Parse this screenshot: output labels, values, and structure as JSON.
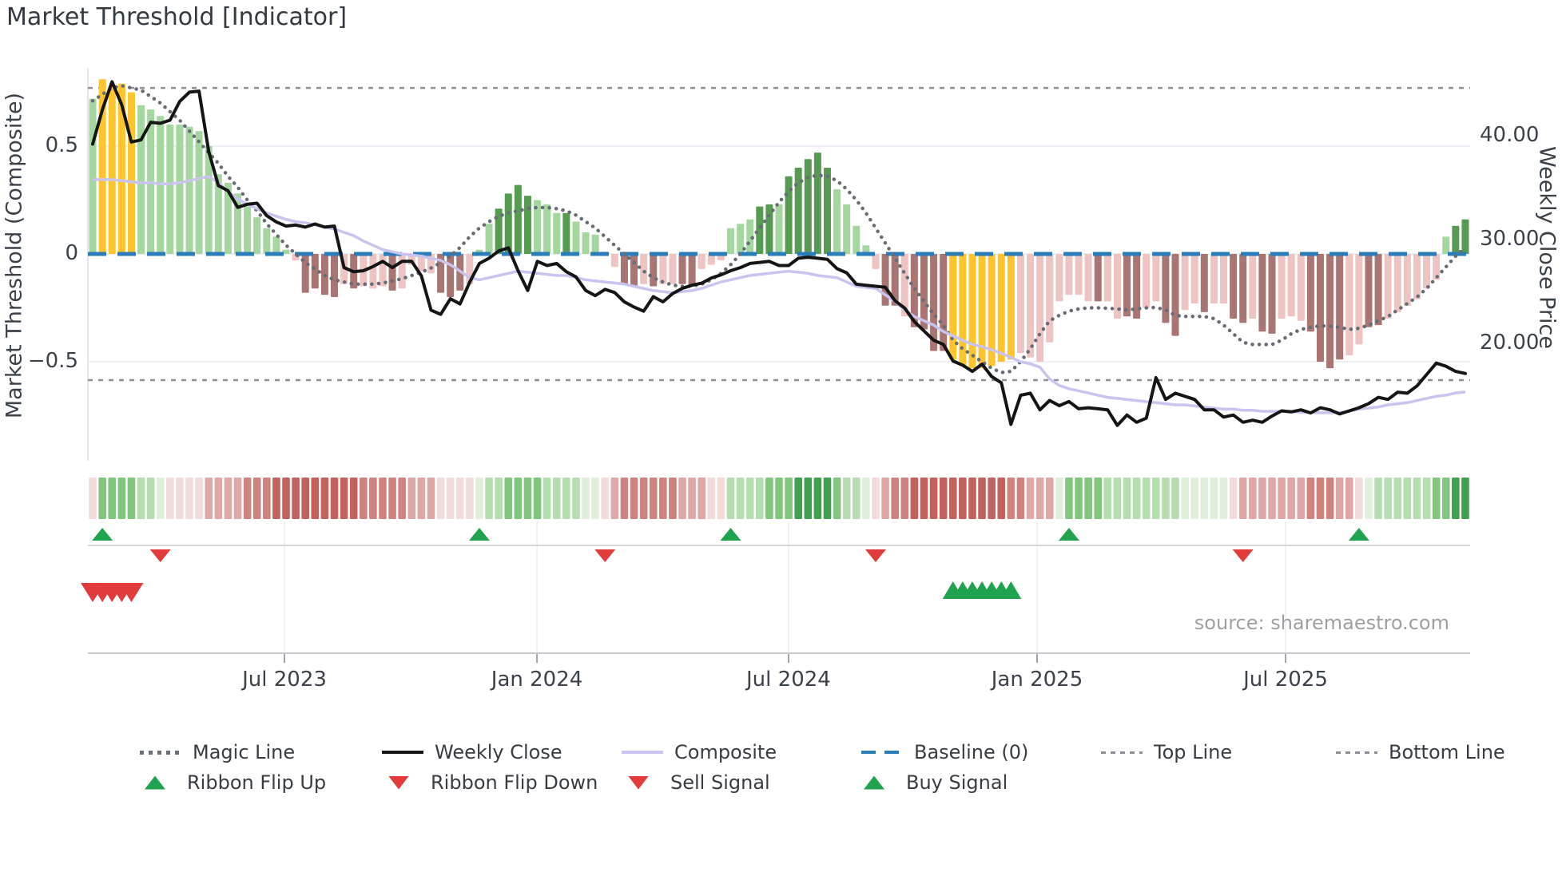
{
  "title": "Market Threshold [Indicator]",
  "source_note": "source: sharemaestro.com",
  "axes": {
    "left": {
      "title": "Market Threshold (Composite)",
      "ticks": [
        {
          "label": "0.5",
          "value": 0.5
        },
        {
          "label": "0",
          "value": 0
        },
        {
          "label": "−0.5",
          "value": -0.5
        }
      ]
    },
    "right": {
      "title": "Weekly Close Price",
      "ticks": [
        {
          "label": "40.00",
          "value": 40
        },
        {
          "label": "30.00",
          "value": 30
        },
        {
          "label": "20.00",
          "value": 20
        }
      ]
    },
    "x": {
      "ticks": [
        {
          "label": "Jul 2023",
          "pos": 0.1422
        },
        {
          "label": "Jan 2024",
          "pos": 0.3249
        },
        {
          "label": "Jul 2024",
          "pos": 0.5069
        },
        {
          "label": "Jan 2025",
          "pos": 0.6867
        },
        {
          "label": "Jul 2025",
          "pos": 0.8665
        }
      ]
    }
  },
  "colors": {
    "bar": {
      "g": "#a6d6a0",
      "G": "#579a51",
      "y": "#fdc42c",
      "p": "#edc4c2",
      "R": "#a97572"
    },
    "ribbon": {
      "R3": "#c2625f",
      "R2": "#cf837f",
      "R1": "#dfa8a6",
      "R0": "#f2dcdb",
      "G0": "#dfefdc",
      "G1": "#b5ddb0",
      "G2": "#82c57f",
      "G3": "#41a04f"
    },
    "weekly_close": "#151515",
    "composite": "#c9c3ee",
    "magic_line": "#686c75",
    "baseline": "#2b7cba",
    "threshold_line": "#8d9298",
    "grid": "#edeff6",
    "signal_up": "#1fa34e",
    "signal_down": "#e13b3b"
  },
  "chart_data": {
    "type": "mixed",
    "subtype": "weekly bar histogram with overlay lines, ribbon heatmap and signal markers",
    "n": 143,
    "period": "weekly, Feb 2023 - Nov 2025",
    "left_ylim": [
      -0.96,
      0.86
    ],
    "right_ylim": [
      8.7,
      46.5
    ],
    "grid": "horizontal only",
    "reference_lines": {
      "baseline": 0,
      "top_line": 0.77,
      "bottom_line": -0.585
    },
    "bars": {
      "name": "Market Threshold composite histogram (yellow = highlighted extreme zones)",
      "values": [
        0.72,
        0.81,
        0.78,
        0.79,
        0.75,
        0.69,
        0.67,
        0.64,
        0.6,
        0.6,
        0.59,
        0.57,
        0.5,
        0.37,
        0.33,
        0.28,
        0.22,
        0.17,
        0.12,
        0.08,
        0.02,
        -0.03,
        -0.18,
        -0.16,
        -0.19,
        -0.2,
        -0.14,
        -0.16,
        -0.15,
        -0.16,
        -0.15,
        -0.17,
        -0.16,
        -0.05,
        -0.08,
        -0.09,
        -0.18,
        -0.2,
        -0.17,
        -0.14,
        0.02,
        0.14,
        0.21,
        0.28,
        0.32,
        0.27,
        0.25,
        0.23,
        0.19,
        0.19,
        0.15,
        0.1,
        0.09,
        0.01,
        -0.06,
        -0.14,
        -0.15,
        -0.14,
        -0.15,
        -0.14,
        -0.14,
        -0.14,
        -0.15,
        -0.07,
        -0.05,
        -0.03,
        0.12,
        0.14,
        0.16,
        0.22,
        0.23,
        0.23,
        0.36,
        0.4,
        0.44,
        0.47,
        0.4,
        0.3,
        0.23,
        0.13,
        0.04,
        -0.07,
        -0.24,
        -0.24,
        -0.29,
        -0.34,
        -0.35,
        -0.45,
        -0.45,
        -0.49,
        -0.52,
        -0.53,
        -0.53,
        -0.52,
        -0.5,
        -0.49,
        -0.46,
        -0.48,
        -0.5,
        -0.41,
        -0.22,
        -0.19,
        -0.19,
        -0.22,
        -0.22,
        -0.22,
        -0.3,
        -0.29,
        -0.3,
        -0.25,
        -0.22,
        -0.32,
        -0.38,
        -0.26,
        -0.23,
        -0.27,
        -0.23,
        -0.23,
        -0.3,
        -0.32,
        -0.3,
        -0.36,
        -0.37,
        -0.3,
        -0.29,
        -0.31,
        -0.36,
        -0.5,
        -0.53,
        -0.49,
        -0.47,
        -0.42,
        -0.34,
        -0.33,
        -0.3,
        -0.27,
        -0.24,
        -0.21,
        -0.16,
        -0.12,
        0.08,
        0.13,
        0.16
      ],
      "color_keys": [
        "g",
        "y",
        "y",
        "y",
        "y",
        "g",
        "g",
        "g",
        "g",
        "g",
        "g",
        "g",
        "g",
        "g",
        "g",
        "g",
        "g",
        "g",
        "g",
        "g",
        "g",
        "p",
        "R",
        "R",
        "R",
        "R",
        "p",
        "R",
        "p",
        "p",
        "p",
        "R",
        "p",
        "p",
        "p",
        "p",
        "R",
        "R",
        "R",
        "p",
        "g",
        "g",
        "G",
        "G",
        "G",
        "G",
        "g",
        "g",
        "g",
        "G",
        "g",
        "g",
        "g",
        "g",
        "p",
        "R",
        "R",
        "p",
        "R",
        "p",
        "p",
        "R",
        "R",
        "p",
        "p",
        "p",
        "g",
        "g",
        "g",
        "G",
        "G",
        "g",
        "G",
        "G",
        "G",
        "G",
        "G",
        "g",
        "g",
        "g",
        "g",
        "p",
        "R",
        "R",
        "p",
        "R",
        "R",
        "R",
        "R",
        "y",
        "y",
        "y",
        "y",
        "y",
        "y",
        "y",
        "p",
        "p",
        "p",
        "p",
        "p",
        "p",
        "p",
        "p",
        "R",
        "p",
        "p",
        "R",
        "R",
        "p",
        "p",
        "R",
        "R",
        "p",
        "p",
        "R",
        "p",
        "p",
        "R",
        "R",
        "p",
        "R",
        "R",
        "p",
        "p",
        "p",
        "R",
        "R",
        "R",
        "R",
        "p",
        "p",
        "R",
        "R",
        "p",
        "p",
        "p",
        "p",
        "p",
        "p",
        "g",
        "G",
        "G"
      ]
    },
    "series": [
      {
        "name": "Weekly Close",
        "axis": "right",
        "style": "solid black",
        "values": [
          39.2,
          42.5,
          45.2,
          43.0,
          39.4,
          39.6,
          41.3,
          41.2,
          41.5,
          43.3,
          44.2,
          44.3,
          38.5,
          35.2,
          34.7,
          33.1,
          33.4,
          33.5,
          32.3,
          31.7,
          31.3,
          31.4,
          31.2,
          31.5,
          31.2,
          31.3,
          27.3,
          26.9,
          27.0,
          27.4,
          27.9,
          27.3,
          27.9,
          27.9,
          26.5,
          23.2,
          22.8,
          24.3,
          23.8,
          25.9,
          27.7,
          28.2,
          28.9,
          29.2,
          27.0,
          25.1,
          27.9,
          27.5,
          27.7,
          26.9,
          26.4,
          25.1,
          24.6,
          25.2,
          24.9,
          24.0,
          23.5,
          23.1,
          24.5,
          24.0,
          24.8,
          25.3,
          25.6,
          25.8,
          26.3,
          26.6,
          27.0,
          27.3,
          27.7,
          27.8,
          27.9,
          27.5,
          27.5,
          28.2,
          28.3,
          28.2,
          28.1,
          27.2,
          26.8,
          25.7,
          25.6,
          25.5,
          25.4,
          24.1,
          23.4,
          22.1,
          21.2,
          20.3,
          19.9,
          18.3,
          17.9,
          17.3,
          18.0,
          16.8,
          16.2,
          12.2,
          15.0,
          15.2,
          13.6,
          14.5,
          14.0,
          14.4,
          13.7,
          13.8,
          13.7,
          13.6,
          12.1,
          13.1,
          12.4,
          12.8,
          16.7,
          14.6,
          15.2,
          14.9,
          14.6,
          13.6,
          13.6,
          12.9,
          13.1,
          12.4,
          12.6,
          12.4,
          13.0,
          13.5,
          13.4,
          13.6,
          13.3,
          13.8,
          13.6,
          13.2,
          13.5,
          13.8,
          14.2,
          14.8,
          14.6,
          15.3,
          15.2,
          15.9,
          17.0,
          18.1,
          17.8,
          17.3,
          17.1
        ]
      },
      {
        "name": "Composite",
        "axis": "left",
        "style": "solid lavender",
        "values": [
          0.345,
          0.345,
          0.345,
          0.34,
          0.335,
          0.33,
          0.33,
          0.325,
          0.325,
          0.33,
          0.34,
          0.35,
          0.36,
          0.33,
          0.29,
          0.255,
          0.23,
          0.21,
          0.19,
          0.175,
          0.16,
          0.15,
          0.145,
          0.135,
          0.125,
          0.115,
          0.1,
          0.085,
          0.06,
          0.04,
          0.02,
          0.01,
          0.0,
          -0.005,
          -0.01,
          -0.02,
          -0.03,
          -0.05,
          -0.08,
          -0.11,
          -0.12,
          -0.11,
          -0.1,
          -0.09,
          -0.08,
          -0.085,
          -0.09,
          -0.095,
          -0.1,
          -0.1,
          -0.11,
          -0.12,
          -0.125,
          -0.13,
          -0.135,
          -0.14,
          -0.15,
          -0.16,
          -0.17,
          -0.175,
          -0.18,
          -0.175,
          -0.17,
          -0.16,
          -0.145,
          -0.13,
          -0.12,
          -0.11,
          -0.1,
          -0.095,
          -0.09,
          -0.085,
          -0.08,
          -0.085,
          -0.09,
          -0.1,
          -0.105,
          -0.11,
          -0.13,
          -0.15,
          -0.155,
          -0.16,
          -0.19,
          -0.22,
          -0.26,
          -0.29,
          -0.31,
          -0.33,
          -0.36,
          -0.38,
          -0.4,
          -0.42,
          -0.43,
          -0.445,
          -0.46,
          -0.48,
          -0.5,
          -0.51,
          -0.525,
          -0.58,
          -0.61,
          -0.625,
          -0.635,
          -0.645,
          -0.655,
          -0.665,
          -0.67,
          -0.675,
          -0.68,
          -0.685,
          -0.69,
          -0.695,
          -0.7,
          -0.7,
          -0.705,
          -0.71,
          -0.715,
          -0.72,
          -0.72,
          -0.725,
          -0.725,
          -0.73,
          -0.73,
          -0.73,
          -0.73,
          -0.735,
          -0.735,
          -0.737,
          -0.737,
          -0.735,
          -0.73,
          -0.72,
          -0.715,
          -0.71,
          -0.7,
          -0.695,
          -0.69,
          -0.68,
          -0.67,
          -0.66,
          -0.655,
          -0.645,
          -0.64
        ]
      },
      {
        "name": "Magic Line",
        "axis": "left",
        "style": "dotted gray",
        "values": [
          0.71,
          0.74,
          0.77,
          0.78,
          0.77,
          0.76,
          0.73,
          0.7,
          0.66,
          0.62,
          0.57,
          0.52,
          0.47,
          0.42,
          0.36,
          0.31,
          0.25,
          0.2,
          0.14,
          0.09,
          0.04,
          0.0,
          -0.04,
          -0.07,
          -0.1,
          -0.12,
          -0.13,
          -0.14,
          -0.14,
          -0.14,
          -0.135,
          -0.125,
          -0.115,
          -0.1,
          -0.085,
          -0.065,
          -0.04,
          -0.01,
          0.03,
          0.08,
          0.12,
          0.15,
          0.175,
          0.19,
          0.2,
          0.21,
          0.215,
          0.215,
          0.21,
          0.2,
          0.18,
          0.15,
          0.12,
          0.08,
          0.04,
          0.0,
          -0.04,
          -0.08,
          -0.11,
          -0.13,
          -0.145,
          -0.15,
          -0.15,
          -0.14,
          -0.12,
          -0.09,
          -0.05,
          0.0,
          0.06,
          0.12,
          0.18,
          0.24,
          0.29,
          0.33,
          0.355,
          0.365,
          0.36,
          0.34,
          0.3,
          0.25,
          0.19,
          0.12,
          0.05,
          -0.02,
          -0.09,
          -0.16,
          -0.22,
          -0.28,
          -0.33,
          -0.4,
          -0.44,
          -0.47,
          -0.5,
          -0.53,
          -0.55,
          -0.545,
          -0.5,
          -0.44,
          -0.37,
          -0.31,
          -0.285,
          -0.265,
          -0.255,
          -0.25,
          -0.25,
          -0.252,
          -0.255,
          -0.26,
          -0.255,
          -0.25,
          -0.248,
          -0.26,
          -0.285,
          -0.29,
          -0.29,
          -0.29,
          -0.3,
          -0.33,
          -0.37,
          -0.41,
          -0.42,
          -0.42,
          -0.42,
          -0.4,
          -0.37,
          -0.35,
          -0.34,
          -0.333,
          -0.335,
          -0.34,
          -0.35,
          -0.345,
          -0.33,
          -0.31,
          -0.29,
          -0.26,
          -0.23,
          -0.2,
          -0.16,
          -0.11,
          -0.06,
          -0.01,
          0.03
        ]
      }
    ],
    "ribbon": {
      "name": "trend ribbon heatmap",
      "cells": [
        "R0",
        "G2",
        "G2",
        "G2",
        "G2",
        "G1",
        "G1",
        "G0",
        "R0",
        "R0",
        "R0",
        "R0",
        "R1",
        "R1",
        "R1",
        "R1",
        "R2",
        "R2",
        "R2",
        "R3",
        "R3",
        "R3",
        "R3",
        "R3",
        "R3",
        "R3",
        "R3",
        "R3",
        "R2",
        "R2",
        "R2",
        "R2",
        "R2",
        "R1",
        "R1",
        "R1",
        "R0",
        "R0",
        "R0",
        "R0",
        "G0",
        "G1",
        "G1",
        "G2",
        "G2",
        "G2",
        "G2",
        "G1",
        "G1",
        "G1",
        "G1",
        "G0",
        "G0",
        "R0",
        "R1",
        "R2",
        "R2",
        "R2",
        "R2",
        "R2",
        "R2",
        "R1",
        "R1",
        "R1",
        "R0",
        "R0",
        "G1",
        "G1",
        "G1",
        "G1",
        "G2",
        "G2",
        "G2",
        "G3",
        "G3",
        "G3",
        "G3",
        "G2",
        "G1",
        "G1",
        "G0",
        "R0",
        "R1",
        "R2",
        "R2",
        "R3",
        "R3",
        "R3",
        "R3",
        "R3",
        "R3",
        "R3",
        "R3",
        "R3",
        "R3",
        "R2",
        "R2",
        "R1",
        "R1",
        "R1",
        "G0",
        "G2",
        "G2",
        "G2",
        "G2",
        "G1",
        "G1",
        "G1",
        "G1",
        "G1",
        "G1",
        "G1",
        "G1",
        "G0",
        "G0",
        "G0",
        "G0",
        "G0",
        "R0",
        "R1",
        "R1",
        "R1",
        "R1",
        "R1",
        "R1",
        "R1",
        "R2",
        "R2",
        "R2",
        "R1",
        "R1",
        "R0",
        "G0",
        "G1",
        "G1",
        "G1",
        "G1",
        "G1",
        "G1",
        "G2",
        "G2",
        "G3",
        "G3"
      ]
    },
    "signals": {
      "ribbon_flip_up_indices": [
        1,
        40,
        66,
        101,
        131
      ],
      "ribbon_flip_down_indices": [
        7,
        53,
        81,
        119
      ],
      "sell_signal_indices": [
        0,
        1,
        2,
        3,
        4
      ],
      "buy_signal_indices": [
        89,
        90,
        91,
        92,
        93,
        94,
        95
      ]
    }
  },
  "legend": {
    "rows": [
      [
        {
          "marker": "dotted-gray",
          "label": "Magic Line"
        },
        {
          "marker": "solid-black",
          "label": "Weekly Close"
        },
        {
          "marker": "solid-lavender",
          "label": "Composite"
        },
        {
          "marker": "dashed-blue",
          "label": "Baseline (0)"
        },
        {
          "marker": "dashed-gray",
          "label": "Top Line"
        },
        {
          "marker": "dashed-gray",
          "label": "Bottom Line"
        }
      ],
      [
        {
          "marker": "triangle-up",
          "label": "Ribbon Flip Up"
        },
        {
          "marker": "triangle-down",
          "label": "Ribbon Flip Down"
        },
        {
          "marker": "triangle-down",
          "label": "Sell Signal"
        },
        {
          "marker": "triangle-up",
          "label": "Buy Signal"
        }
      ]
    ]
  }
}
